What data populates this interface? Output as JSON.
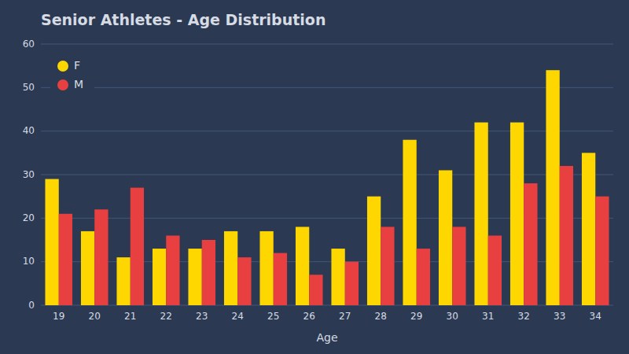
{
  "chart_data": {
    "type": "bar",
    "title": "Senior Athletes - Age Distribution",
    "xlabel": "Age",
    "categories": [
      "19",
      "20",
      "21",
      "22",
      "23",
      "24",
      "25",
      "26",
      "27",
      "28",
      "29",
      "30",
      "31",
      "32",
      "33",
      "34"
    ],
    "series": [
      {
        "name": "F",
        "color": "#FFD700",
        "values": [
          29,
          17,
          11,
          13,
          13,
          17,
          17,
          18,
          13,
          25,
          38,
          31,
          42,
          42,
          54,
          35
        ]
      },
      {
        "name": "M",
        "color": "#E84040",
        "values": [
          21,
          22,
          27,
          16,
          15,
          11,
          12,
          7,
          10,
          18,
          13,
          18,
          16,
          28,
          32,
          25
        ]
      }
    ],
    "ylim": [
      0,
      60
    ],
    "yticks": [
      0,
      10,
      20,
      30,
      40,
      50,
      60
    ],
    "grid": true,
    "legend": "upper left"
  }
}
